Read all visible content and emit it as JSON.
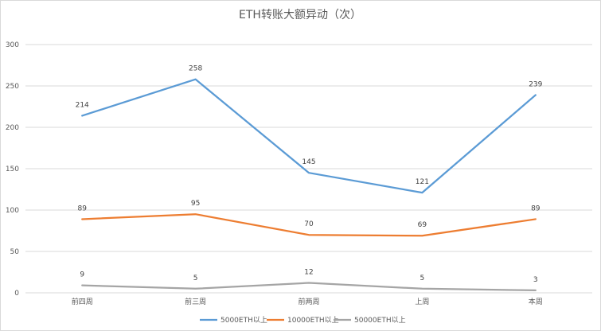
{
  "chart_data": {
    "type": "line",
    "title": "ETH转账大额异动（次）",
    "xlabel": "",
    "ylabel": "",
    "categories": [
      "前四周",
      "前三周",
      "前两周",
      "上周",
      "本周"
    ],
    "ylim": [
      0,
      300
    ],
    "yticks": [
      0,
      50,
      100,
      150,
      200,
      250,
      300
    ],
    "grid": true,
    "legend_position": "bottom",
    "series": [
      {
        "name": "5000ETH以上",
        "values": [
          214,
          258,
          145,
          121,
          239
        ],
        "color": "#5b9bd5"
      },
      {
        "name": "10000ETH以上",
        "values": [
          89,
          95,
          70,
          69,
          89
        ],
        "color": "#ed7d31"
      },
      {
        "name": "50000ETH以上",
        "values": [
          9,
          5,
          12,
          5,
          3
        ],
        "color": "#a5a5a5"
      }
    ]
  }
}
